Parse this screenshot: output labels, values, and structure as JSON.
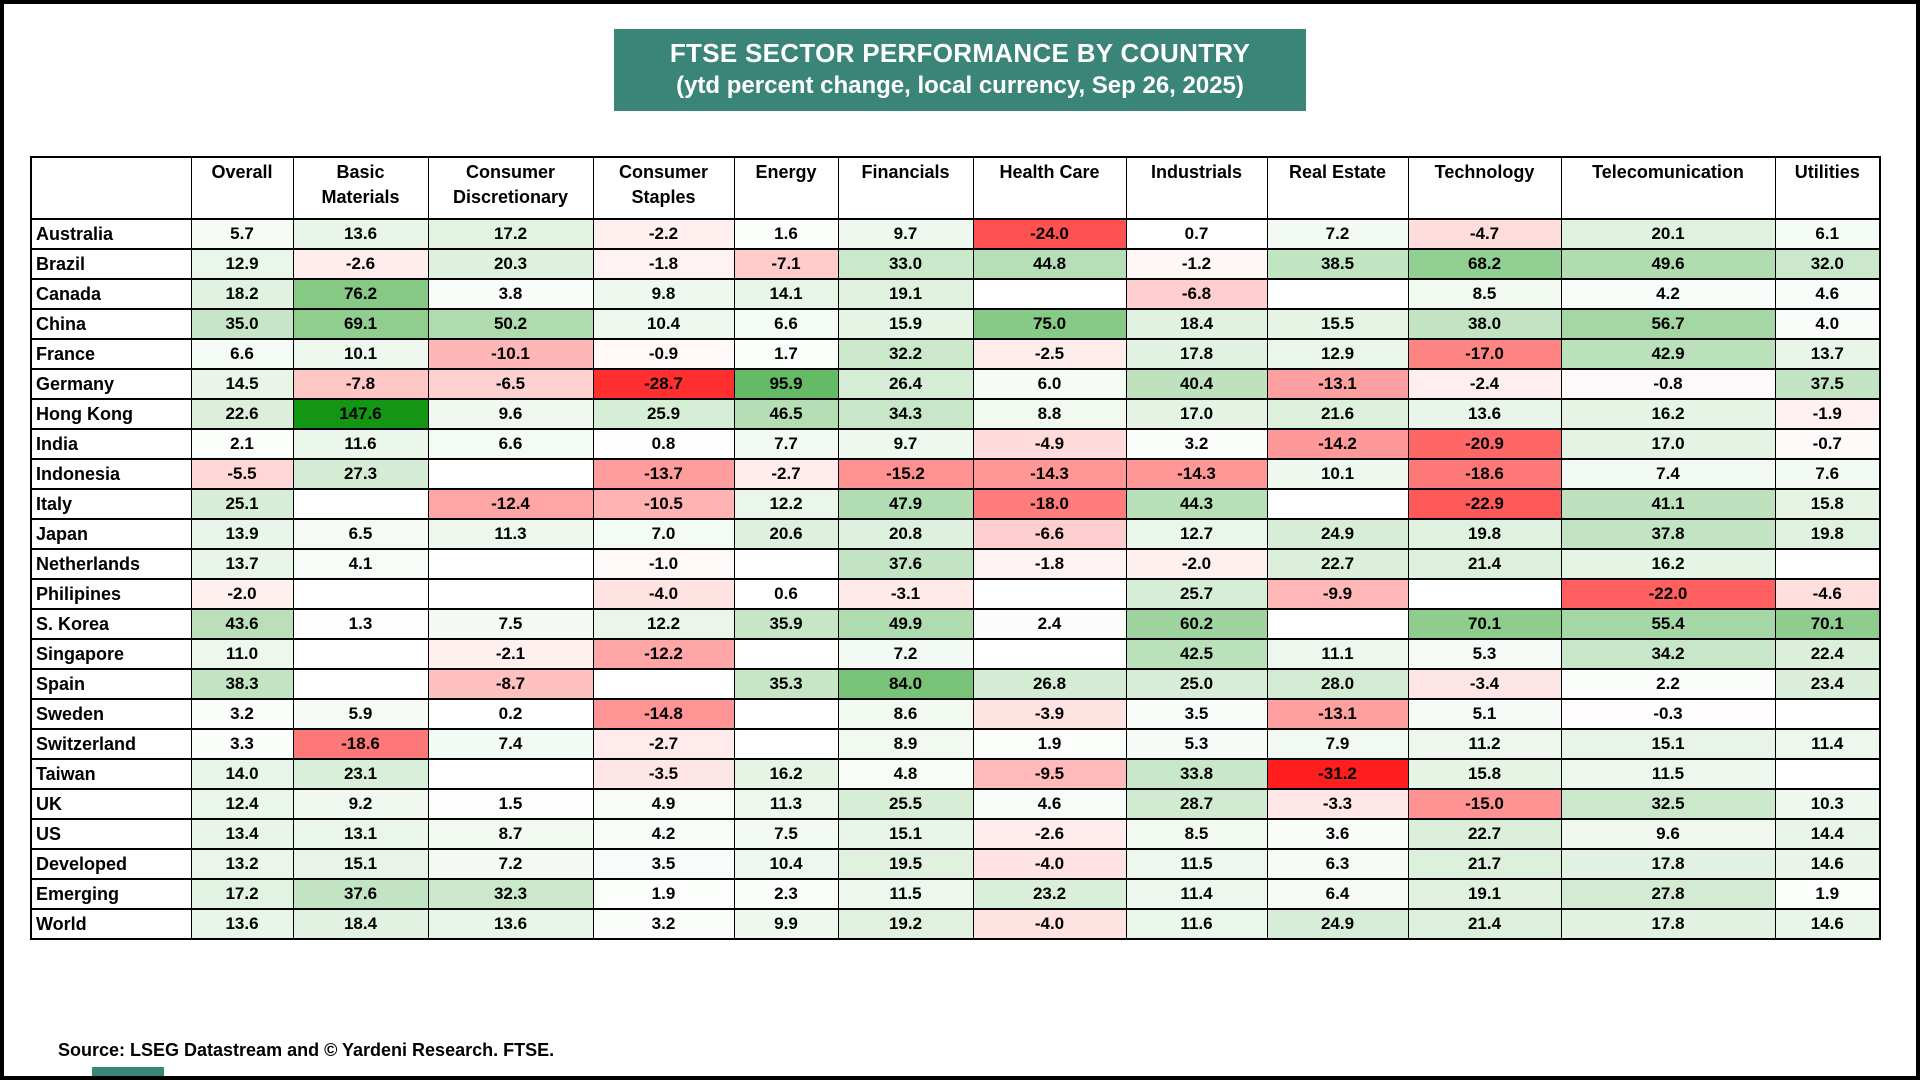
{
  "title": {
    "line1": "FTSE SECTOR PERFORMANCE BY COUNTRY",
    "line2": "(ytd percent change, local currency, Sep 26, 2025)"
  },
  "source": "Source: LSEG Datastream and © Yardeni Research. FTSE.",
  "colors": {
    "title_bg": "#3a8577",
    "grid": "#000000",
    "positive_max": "#129612",
    "negative_max": "#ff1e1e",
    "zero": "#ffffff"
  },
  "chart_data": {
    "type": "heatmap",
    "title": "FTSE SECTOR PERFORMANCE BY COUNTRY",
    "subtitle": "(ytd percent change, local currency, Sep 26, 2025)",
    "unit": "ytd percent change",
    "columns": [
      "Overall",
      "Basic\nMaterials",
      "Consumer\nDiscretionary",
      "Consumer\nStaples",
      "Energy",
      "Financials",
      "Health Care",
      "Industrials",
      "Real Estate",
      "Technology",
      "Telecomunication",
      "Utilities"
    ],
    "rows": [
      {
        "country": "Australia",
        "values": [
          5.7,
          13.6,
          17.2,
          -2.2,
          1.6,
          9.7,
          -24.0,
          0.7,
          7.2,
          -4.7,
          20.1,
          6.1
        ]
      },
      {
        "country": "Brazil",
        "values": [
          12.9,
          -2.6,
          20.3,
          -1.8,
          -7.1,
          33.0,
          44.8,
          -1.2,
          38.5,
          68.2,
          49.6,
          32.0
        ]
      },
      {
        "country": "Canada",
        "values": [
          18.2,
          76.2,
          3.8,
          9.8,
          14.1,
          19.1,
          null,
          -6.8,
          null,
          8.5,
          4.2,
          4.6
        ]
      },
      {
        "country": "China",
        "values": [
          35.0,
          69.1,
          50.2,
          10.4,
          6.6,
          15.9,
          75.0,
          18.4,
          15.5,
          38.0,
          56.7,
          4.0
        ]
      },
      {
        "country": "France",
        "values": [
          6.6,
          10.1,
          -10.1,
          -0.9,
          1.7,
          32.2,
          -2.5,
          17.8,
          12.9,
          -17.0,
          42.9,
          13.7
        ]
      },
      {
        "country": "Germany",
        "values": [
          14.5,
          -7.8,
          -6.5,
          -28.7,
          95.9,
          26.4,
          6.0,
          40.4,
          -13.1,
          -2.4,
          -0.8,
          37.5
        ]
      },
      {
        "country": "Hong Kong",
        "values": [
          22.6,
          147.6,
          9.6,
          25.9,
          46.5,
          34.3,
          8.8,
          17.0,
          21.6,
          13.6,
          16.2,
          -1.9
        ]
      },
      {
        "country": "India",
        "values": [
          2.1,
          11.6,
          6.6,
          0.8,
          7.7,
          9.7,
          -4.9,
          3.2,
          -14.2,
          -20.9,
          17.0,
          -0.7
        ]
      },
      {
        "country": "Indonesia",
        "values": [
          -5.5,
          27.3,
          null,
          -13.7,
          -2.7,
          -15.2,
          -14.3,
          -14.3,
          10.1,
          -18.6,
          7.4,
          7.6
        ]
      },
      {
        "country": "Italy",
        "values": [
          25.1,
          null,
          -12.4,
          -10.5,
          12.2,
          47.9,
          -18.0,
          44.3,
          null,
          -22.9,
          41.1,
          15.8
        ]
      },
      {
        "country": "Japan",
        "values": [
          13.9,
          6.5,
          11.3,
          7.0,
          20.6,
          20.8,
          -6.6,
          12.7,
          24.9,
          19.8,
          37.8,
          19.8
        ]
      },
      {
        "country": "Netherlands",
        "values": [
          13.7,
          4.1,
          null,
          -1.0,
          null,
          37.6,
          -1.8,
          -2.0,
          22.7,
          21.4,
          16.2,
          null
        ]
      },
      {
        "country": "Philipines",
        "values": [
          -2.0,
          null,
          null,
          -4.0,
          0.6,
          -3.1,
          null,
          25.7,
          -9.9,
          null,
          -22.0,
          -4.6
        ]
      },
      {
        "country": "S. Korea",
        "values": [
          43.6,
          1.3,
          7.5,
          12.2,
          35.9,
          49.9,
          2.4,
          60.2,
          null,
          70.1,
          55.4,
          70.1
        ]
      },
      {
        "country": "Singapore",
        "values": [
          11.0,
          null,
          -2.1,
          -12.2,
          null,
          7.2,
          null,
          42.5,
          11.1,
          5.3,
          34.2,
          22.4
        ]
      },
      {
        "country": "Spain",
        "values": [
          38.3,
          null,
          -8.7,
          null,
          35.3,
          84.0,
          26.8,
          25.0,
          28.0,
          -3.4,
          2.2,
          23.4
        ]
      },
      {
        "country": "Sweden",
        "values": [
          3.2,
          5.9,
          0.2,
          -14.8,
          null,
          8.6,
          -3.9,
          3.5,
          -13.1,
          5.1,
          -0.3,
          null
        ]
      },
      {
        "country": "Switzerland",
        "values": [
          3.3,
          -18.6,
          7.4,
          -2.7,
          null,
          8.9,
          1.9,
          5.3,
          7.9,
          11.2,
          15.1,
          11.4
        ]
      },
      {
        "country": "Taiwan",
        "values": [
          14.0,
          23.1,
          null,
          -3.5,
          16.2,
          4.8,
          -9.5,
          33.8,
          -31.2,
          15.8,
          11.5,
          null
        ]
      },
      {
        "country": "UK",
        "values": [
          12.4,
          9.2,
          1.5,
          4.9,
          11.3,
          25.5,
          4.6,
          28.7,
          -3.3,
          -15.0,
          32.5,
          10.3
        ]
      },
      {
        "country": "US",
        "values": [
          13.4,
          13.1,
          8.7,
          4.2,
          7.5,
          15.1,
          -2.6,
          8.5,
          3.6,
          22.7,
          9.6,
          14.4
        ]
      },
      {
        "country": "Developed",
        "values": [
          13.2,
          15.1,
          7.2,
          3.5,
          10.4,
          19.5,
          -4.0,
          11.5,
          6.3,
          21.7,
          17.8,
          14.6
        ]
      },
      {
        "country": "Emerging",
        "values": [
          17.2,
          37.6,
          32.3,
          1.9,
          2.3,
          11.5,
          23.2,
          11.4,
          6.4,
          19.1,
          27.8,
          1.9
        ]
      },
      {
        "country": "World",
        "values": [
          13.6,
          18.4,
          13.6,
          3.2,
          9.9,
          19.2,
          -4.0,
          11.6,
          24.9,
          21.4,
          17.8,
          14.6
        ]
      }
    ],
    "color_scale": {
      "zero_color": "#ffffff",
      "positive_color": "#129612",
      "negative_color": "#ff1e1e",
      "positive_cap": 148,
      "negative_cap": 31
    },
    "legend_position": "none",
    "grid": true
  }
}
